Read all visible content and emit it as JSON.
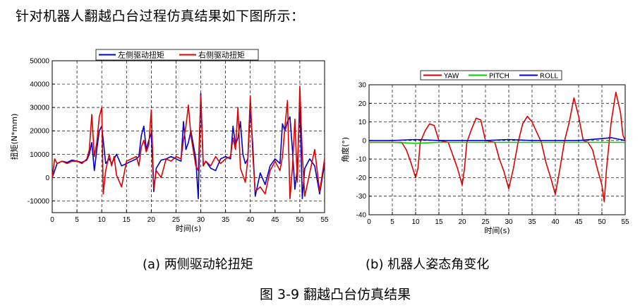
{
  "intro_text": "针对机器人翻越凸台过程仿真结果如下图所示：",
  "caption_a": "(a)  两侧驱动轮扭矩",
  "caption_b": "(b) 机器人姿态角变化",
  "figure_caption": "图 3-9  翻越凸台仿真结果",
  "chart_data": [
    {
      "type": "line",
      "xlabel": "时间(s)",
      "ylabel": "扭矩(N*mm)",
      "xlim": [
        0,
        55
      ],
      "ylim": [
        -15000,
        50000
      ],
      "xticks": [
        0,
        5,
        10,
        15,
        20,
        25,
        30,
        35,
        40,
        45,
        50,
        55
      ],
      "yticks": [
        -10000,
        0,
        10000,
        20000,
        30000,
        40000,
        50000
      ],
      "grid": true,
      "legend_position": "top-center",
      "series": [
        {
          "name": "左侧驱动扭矩",
          "color": "#0000cc",
          "x": [
            0,
            1,
            2,
            3,
            4,
            5,
            6,
            7,
            7.5,
            8,
            8.5,
            9,
            9.5,
            10,
            10.3,
            10.8,
            11.5,
            12,
            13,
            14,
            15,
            16,
            17,
            17.5,
            18,
            18.5,
            19,
            19.5,
            20,
            20.5,
            21,
            22,
            23,
            24,
            25,
            26,
            26.5,
            27,
            27.5,
            28,
            29,
            29.5,
            30,
            30.5,
            31,
            32,
            33,
            34,
            35,
            36,
            36.5,
            37,
            37.5,
            38,
            38.5,
            39,
            39.5,
            40,
            40.5,
            41,
            42,
            43,
            44,
            45,
            46,
            46.5,
            47,
            47.5,
            48,
            48.5,
            49,
            49.5,
            50,
            50.5,
            51,
            52,
            53,
            54,
            55
          ],
          "y": [
            0,
            6000,
            7000,
            6500,
            7500,
            7000,
            6500,
            7500,
            10000,
            15000,
            3000,
            12000,
            20000,
            22000,
            16000,
            6000,
            8000,
            6000,
            10000,
            5000,
            6000,
            7000,
            8000,
            9000,
            18000,
            22000,
            12000,
            16000,
            19000,
            -6000,
            4000,
            7500,
            8000,
            9000,
            8000,
            7000,
            24000,
            12000,
            15000,
            20000,
            8000,
            -9000,
            36000,
            5000,
            7000,
            4000,
            3000,
            8000,
            9000,
            8000,
            22000,
            14000,
            17000,
            24000,
            10000,
            6000,
            8000,
            30000,
            14000,
            -8000,
            2000,
            -3000,
            5000,
            8000,
            6000,
            23000,
            20000,
            24000,
            26000,
            12000,
            -5000,
            4000,
            32000,
            -9000,
            4000,
            8000,
            5000,
            -7000,
            6000
          ]
        },
        {
          "name": "右侧驱动扭矩",
          "color": "#dd0000",
          "x": [
            0,
            0.5,
            1,
            2,
            3,
            4,
            5,
            6,
            7,
            7.5,
            8,
            8.5,
            9,
            9.5,
            10,
            10.3,
            10.8,
            11.5,
            12,
            12.5,
            13,
            14,
            15,
            16,
            17,
            17.5,
            18,
            18.5,
            19,
            19.5,
            20,
            20.5,
            21,
            22,
            23,
            24,
            25,
            26,
            26.5,
            27,
            27.5,
            28,
            29,
            29.5,
            30,
            30.5,
            31,
            32,
            33,
            34,
            35,
            36,
            36.5,
            37,
            37.5,
            38,
            38.5,
            39,
            39.5,
            40,
            40.5,
            41,
            42,
            43,
            44,
            45,
            46,
            46.5,
            47,
            47.5,
            48,
            48.5,
            49,
            49.5,
            50,
            50.5,
            51,
            52,
            53,
            54,
            55
          ],
          "y": [
            0,
            8000,
            6000,
            7000,
            6000,
            7000,
            7000,
            6000,
            8000,
            12000,
            27000,
            9000,
            15000,
            26000,
            30000,
            -7000,
            3000,
            10000,
            5000,
            9000,
            1000,
            -4000,
            7000,
            8000,
            9000,
            5000,
            13000,
            16000,
            11000,
            14000,
            29000,
            -5000,
            3000,
            0,
            8000,
            7000,
            9000,
            8000,
            16000,
            22000,
            31000,
            18000,
            5000,
            3000,
            35000,
            5000,
            7000,
            5000,
            9000,
            6000,
            8000,
            9000,
            17000,
            12000,
            30000,
            4000,
            1000,
            -2000,
            8000,
            35000,
            10000,
            -6000,
            -4000,
            -7000,
            3000,
            7000,
            3000,
            9000,
            22000,
            33000,
            -9000,
            4000,
            25000,
            -2000,
            39000,
            10000,
            -8000,
            2000,
            12000,
            -6000,
            8000
          ]
        }
      ]
    },
    {
      "type": "line",
      "xlabel": "时间(s)",
      "ylabel": "角度(°)",
      "xlim": [
        0,
        55
      ],
      "ylim": [
        -40,
        30
      ],
      "xticks": [
        0,
        5,
        10,
        15,
        20,
        25,
        30,
        35,
        40,
        45,
        50,
        55
      ],
      "yticks": [
        -40,
        -30,
        -20,
        -10,
        0,
        10,
        20,
        30
      ],
      "grid": true,
      "legend_position": "top-center",
      "series": [
        {
          "name": "YAW",
          "color": "#dd0000",
          "x": [
            0,
            5,
            6,
            7,
            8,
            9,
            10,
            10.5,
            11,
            12,
            13,
            14,
            15,
            17,
            18,
            19,
            20,
            20.5,
            21,
            22,
            23,
            24,
            25,
            27,
            28,
            29,
            30,
            31,
            32,
            33,
            34,
            35,
            37,
            38,
            39,
            40,
            41,
            42,
            43,
            44,
            45,
            46,
            47,
            48,
            49,
            50,
            50.5,
            51,
            52,
            53,
            54,
            54.5,
            55
          ],
          "y": [
            -1,
            -1,
            -1,
            -1,
            -5,
            -12,
            -20,
            -15,
            -1,
            5,
            9,
            8,
            0,
            -1,
            -8,
            -15,
            -24,
            -15,
            -1,
            6,
            12,
            11,
            0,
            -1,
            -10,
            -17,
            -26,
            -15,
            -1,
            9,
            13,
            10,
            -1,
            -12,
            -20,
            -29,
            -15,
            0,
            10,
            23,
            13,
            0,
            -1,
            -5,
            -15,
            -24,
            -33,
            -15,
            10,
            26,
            15,
            3,
            0
          ]
        },
        {
          "name": "PITCH",
          "color": "#00cc00",
          "x": [
            0,
            5,
            10,
            15,
            20,
            25,
            30,
            35,
            40,
            45,
            50,
            55
          ],
          "y": [
            -1,
            -1,
            -1.5,
            -1,
            -1,
            -1,
            -1,
            -1,
            -1,
            -1,
            -1,
            -1
          ]
        },
        {
          "name": "ROLL",
          "color": "#0000cc",
          "x": [
            0,
            5,
            10,
            15,
            20,
            25,
            30,
            35,
            40,
            45,
            50,
            52,
            55
          ],
          "y": [
            0,
            0,
            0.5,
            0,
            0,
            0,
            0.5,
            0,
            0,
            0,
            1,
            1.5,
            0
          ]
        }
      ]
    }
  ]
}
